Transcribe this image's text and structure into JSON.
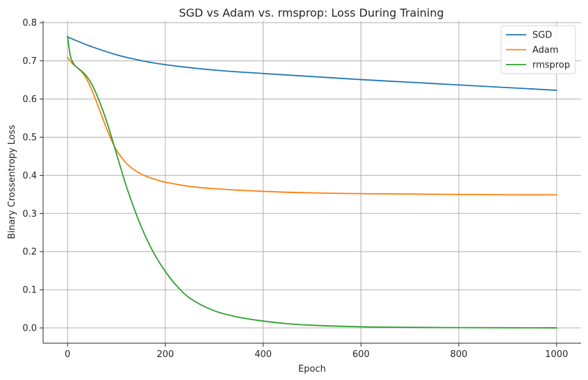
{
  "chart_data": {
    "type": "line",
    "title": "SGD vs Adam vs. rmsprop: Loss During Training",
    "xlabel": "Epoch",
    "ylabel": "Binary Crossentropy Loss",
    "xlim": [
      -50,
      1050
    ],
    "ylim": [
      -0.04,
      0.805
    ],
    "xticks": [
      0,
      200,
      400,
      600,
      800,
      1000
    ],
    "xtick_labels": [
      "0",
      "200",
      "400",
      "600",
      "800",
      "1000"
    ],
    "yticks": [
      0.0,
      0.1,
      0.2,
      0.3,
      0.4,
      0.5,
      0.6,
      0.7,
      0.8
    ],
    "ytick_labels": [
      "0.0",
      "0.1",
      "0.2",
      "0.3",
      "0.4",
      "0.5",
      "0.6",
      "0.7",
      "0.8"
    ],
    "grid": true,
    "legend_position": "top-right",
    "series": [
      {
        "name": "SGD",
        "color": "#1f77b4",
        "x": [
          0,
          20,
          50,
          100,
          150,
          200,
          300,
          400,
          500,
          600,
          700,
          800,
          900,
          1000
        ],
        "values": [
          0.763,
          0.752,
          0.737,
          0.716,
          0.701,
          0.69,
          0.676,
          0.667,
          0.659,
          0.651,
          0.644,
          0.637,
          0.63,
          0.623
        ]
      },
      {
        "name": "Adam",
        "color": "#ff7f0e",
        "x": [
          0,
          10,
          20,
          30,
          40,
          50,
          60,
          70,
          80,
          90,
          100,
          120,
          140,
          160,
          180,
          200,
          250,
          300,
          400,
          500,
          600,
          700,
          800,
          900,
          1000
        ],
        "values": [
          0.709,
          0.693,
          0.682,
          0.67,
          0.65,
          0.623,
          0.59,
          0.556,
          0.522,
          0.492,
          0.466,
          0.432,
          0.411,
          0.398,
          0.389,
          0.382,
          0.371,
          0.365,
          0.358,
          0.354,
          0.352,
          0.351,
          0.35,
          0.349,
          0.349
        ]
      },
      {
        "name": "rmsprop",
        "color": "#2ca02c",
        "x": [
          0,
          3,
          6,
          10,
          15,
          20,
          30,
          40,
          50,
          60,
          70,
          80,
          90,
          100,
          110,
          120,
          140,
          160,
          180,
          200,
          220,
          250,
          300,
          350,
          400,
          450,
          500,
          600,
          700,
          800,
          900,
          1000
        ],
        "values": [
          0.765,
          0.735,
          0.712,
          0.698,
          0.688,
          0.682,
          0.672,
          0.658,
          0.638,
          0.61,
          0.578,
          0.541,
          0.5,
          0.457,
          0.414,
          0.372,
          0.3,
          0.238,
          0.188,
          0.148,
          0.115,
          0.078,
          0.045,
          0.028,
          0.018,
          0.011,
          0.007,
          0.003,
          0.0015,
          0.0008,
          0.0004,
          0.0002
        ]
      }
    ]
  }
}
